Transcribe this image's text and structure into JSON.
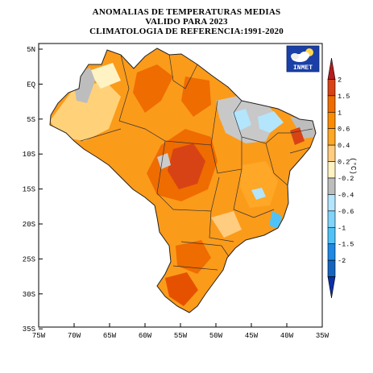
{
  "titles": {
    "line1": "ANOMALIAS DE TEMPERATURAS MEDIAS",
    "line2": "VALIDO PARA 2023",
    "line3": "CLIMATOLOGIA DE REFERENCIA:1991-2020"
  },
  "logo": {
    "text": "INMET",
    "icon": "partly-cloudy-sun-icon"
  },
  "lat_labels": [
    "5N",
    "EQ",
    "5S",
    "10S",
    "15S",
    "20S",
    "25S",
    "30S",
    "35S"
  ],
  "lon_labels": [
    "75W",
    "70W",
    "65W",
    "60W",
    "55W",
    "50W",
    "45W",
    "40W",
    "35W"
  ],
  "colorbar": {
    "unit": "(°C)",
    "ticks": [
      "2",
      "1.5",
      "1",
      "0.6",
      "0.4",
      "0.2",
      "-0.2",
      "-0.4",
      "-0.6",
      "-1",
      "-1.5",
      "-2"
    ],
    "colors": [
      "#b71c1c",
      "#d84315",
      "#ef6c00",
      "#fb8c00",
      "#ffa726",
      "#ffcc80",
      "#fff3c4",
      "#bdbdbd",
      "#b3e5fc",
      "#81d4fa",
      "#4fc3f7",
      "#1e88e5",
      "#1565c0",
      "#0d2fa8"
    ]
  }
}
